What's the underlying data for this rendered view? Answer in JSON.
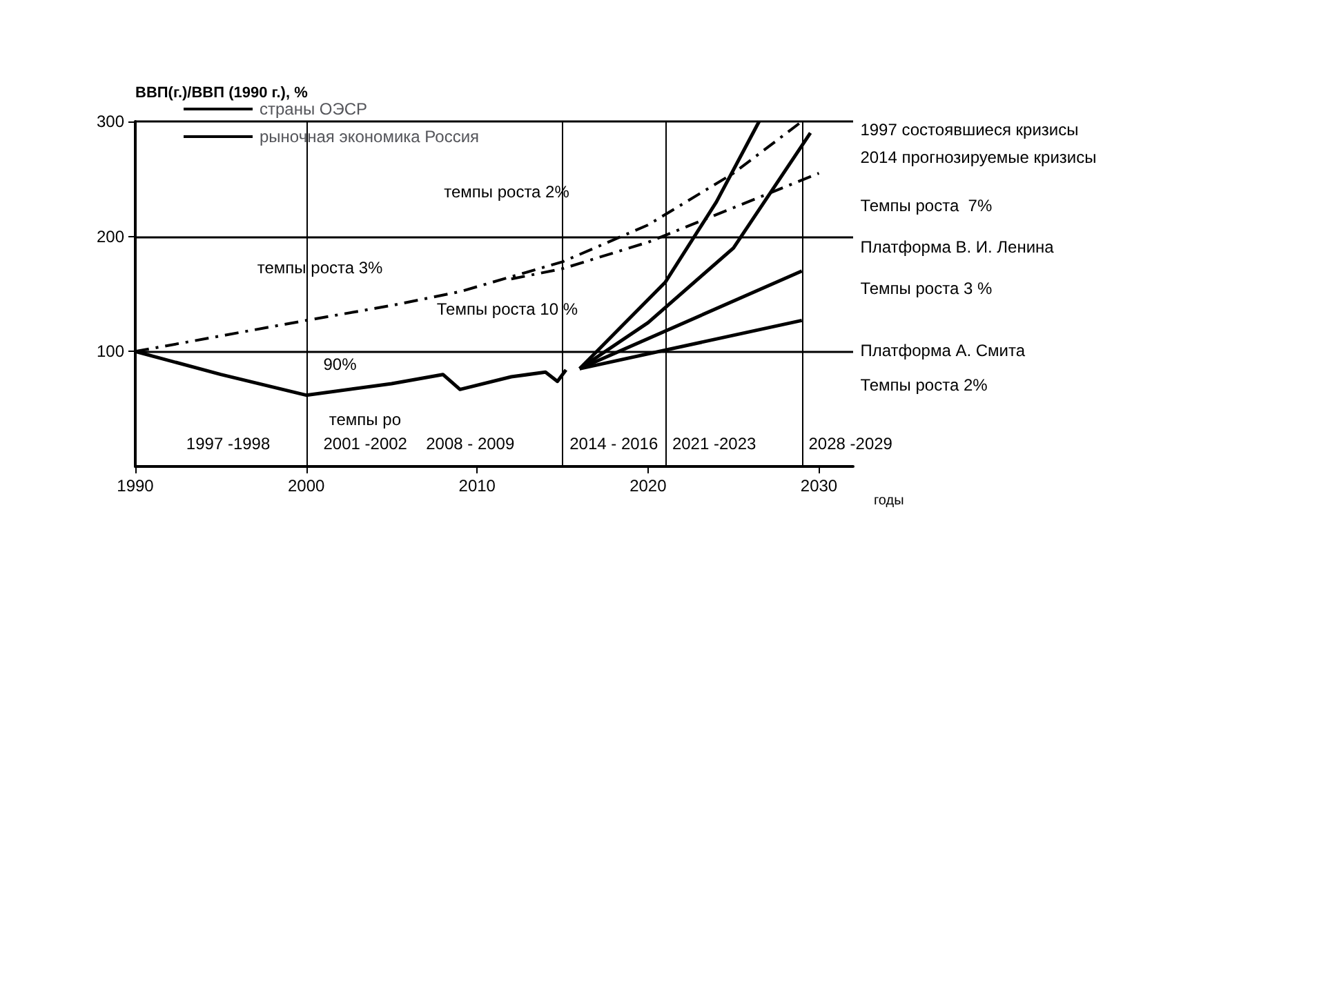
{
  "chart_data": {
    "type": "line",
    "ylabel": "ВВП(г.)/ВВП (1990 г.), %",
    "xlabel": "годы",
    "xlim": [
      1990,
      2032
    ],
    "xticks": [
      1990,
      2000,
      2010,
      2020,
      2030
    ],
    "ylim": [
      0,
      300
    ],
    "yticks": [
      100,
      200,
      300
    ],
    "grid": "y",
    "legend": "top left",
    "marker": "none",
    "series": [
      {
        "name": "страны ОЭСР",
        "color": "#000000",
        "line_style": "dashed",
        "x": [
          1990,
          2000,
          2005,
          2009,
          2015,
          2020,
          2025,
          2029
        ],
        "values": [
          100,
          127,
          140,
          152,
          178,
          210,
          255,
          300
        ]
      },
      {
        "color": "#000000",
        "line_style": "dashed",
        "x": [
          2012,
          2015,
          2020,
          2025,
          2030
        ],
        "values": [
          163,
          172,
          195,
          225,
          255
        ]
      },
      {
        "name": "рыночная экономика Россия",
        "color": "#000000",
        "line_style": "solid",
        "x": [
          1990,
          1995,
          2000,
          2005,
          2008,
          2009,
          2012,
          2014,
          2014.7,
          2015.2
        ],
        "values": [
          100,
          80,
          62,
          72,
          80,
          67,
          78,
          82,
          74,
          84
        ]
      },
      {
        "color": "#000000",
        "line_style": "solid",
        "x": [
          2016,
          2018,
          2021,
          2024,
          2026.5
        ],
        "values": [
          85,
          115,
          160,
          230,
          300
        ]
      },
      {
        "color": "#000000",
        "line_style": "solid",
        "x": [
          2016,
          2020,
          2025,
          2029.5
        ],
        "values": [
          85,
          125,
          190,
          290
        ]
      },
      {
        "color": "#000000",
        "line_style": "solid",
        "x": [
          2016,
          2029
        ],
        "values": [
          85,
          170
        ]
      },
      {
        "color": "#000000",
        "line_style": "solid",
        "x": [
          2016,
          2029
        ],
        "values": [
          85,
          127
        ]
      }
    ],
    "ref_lines": [
      {
        "axis": "x",
        "value": 2000
      },
      {
        "axis": "x",
        "value": 2015
      },
      {
        "axis": "x",
        "value": 2021
      },
      {
        "axis": "x",
        "value": 2029
      }
    ],
    "annotations": [
      "1997 состоявшиеся кризисы",
      "2014 прогнозируемые кризисы",
      "темпы роста 3%",
      "темпы ро",
      "темпы роста 2%",
      "Темпы роста 10 %",
      "Темпы роста  7%",
      "Платформа В. И. Ленина",
      "Темпы роста 3 %",
      "Платформа А. Смита",
      "Темпы роста 2%",
      "90%",
      "1997 -1998",
      "2001 -2002",
      "2008 - 2009",
      "2014 - 2016",
      "2021 -2023",
      "2028 -2029"
    ]
  }
}
